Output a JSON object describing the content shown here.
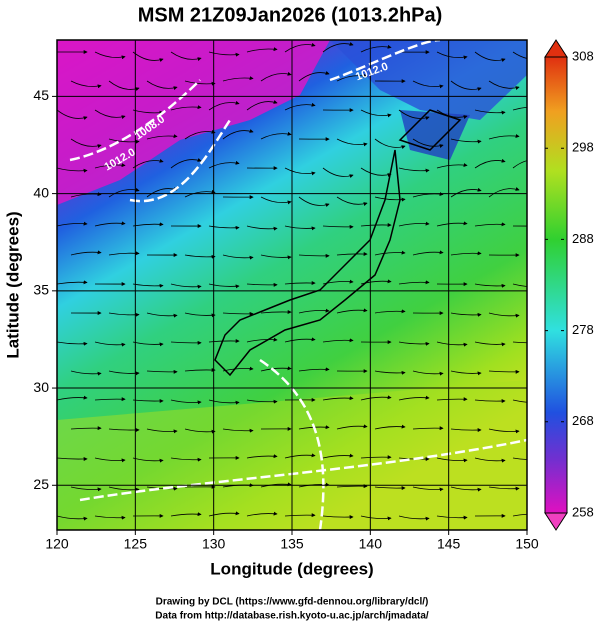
{
  "title": "MSM 21Z09Jan2026 (1013.2hPa)",
  "x_axis": {
    "label": "Longitude (degrees)",
    "lim": [
      120,
      150
    ],
    "ticks": [
      120,
      125,
      130,
      135,
      140,
      145,
      150
    ]
  },
  "y_axis": {
    "label": "Latitude  (degrees)",
    "lim": [
      22.7,
      47.9
    ],
    "ticks": [
      25,
      30,
      35,
      40,
      45
    ]
  },
  "colorbar": {
    "lim": [
      258,
      308
    ],
    "ticks": [
      258,
      268,
      278,
      288,
      298,
      308
    ]
  },
  "contour_labels": [
    "1012.0",
    "1008.0",
    "1012.0"
  ],
  "footer": [
    "Drawing by DCL (https://www.gfd-dennou.org/library/dcl/)",
    "Data from http://database.rish.kyoto-u.ac.jp/arch/jmadata/"
  ]
}
